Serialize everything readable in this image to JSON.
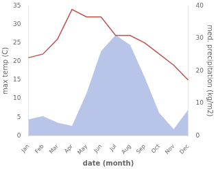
{
  "chart_data": {
    "type": "line",
    "xlabel": "date (month)",
    "ylabel": "max temp (C)",
    "y2label": "med. precipitation (kg/m2)",
    "categories": [
      "Jan",
      "Feb",
      "Mar",
      "Apr",
      "May",
      "Jun",
      "Jul",
      "Aug",
      "Sep",
      "Oct",
      "Nov",
      "Dec"
    ],
    "series": [
      {
        "type": "line",
        "color": "#c0504d",
        "values": [
          21,
          22,
          26,
          34,
          32,
          32,
          27,
          27,
          25,
          22,
          19,
          15
        ]
      },
      {
        "type": "area",
        "axis": "y2",
        "color": "#b8c4e8",
        "values": [
          5,
          6,
          4,
          3,
          13,
          26,
          31,
          28,
          18,
          7,
          2,
          8
        ]
      }
    ],
    "ylim": [
      0,
      35
    ],
    "yticks": [
      0,
      5,
      10,
      15,
      20,
      25,
      30,
      35
    ],
    "y2lim": [
      0,
      40
    ],
    "y2ticks": [
      0,
      10,
      20,
      30,
      40
    ],
    "grid": false
  }
}
